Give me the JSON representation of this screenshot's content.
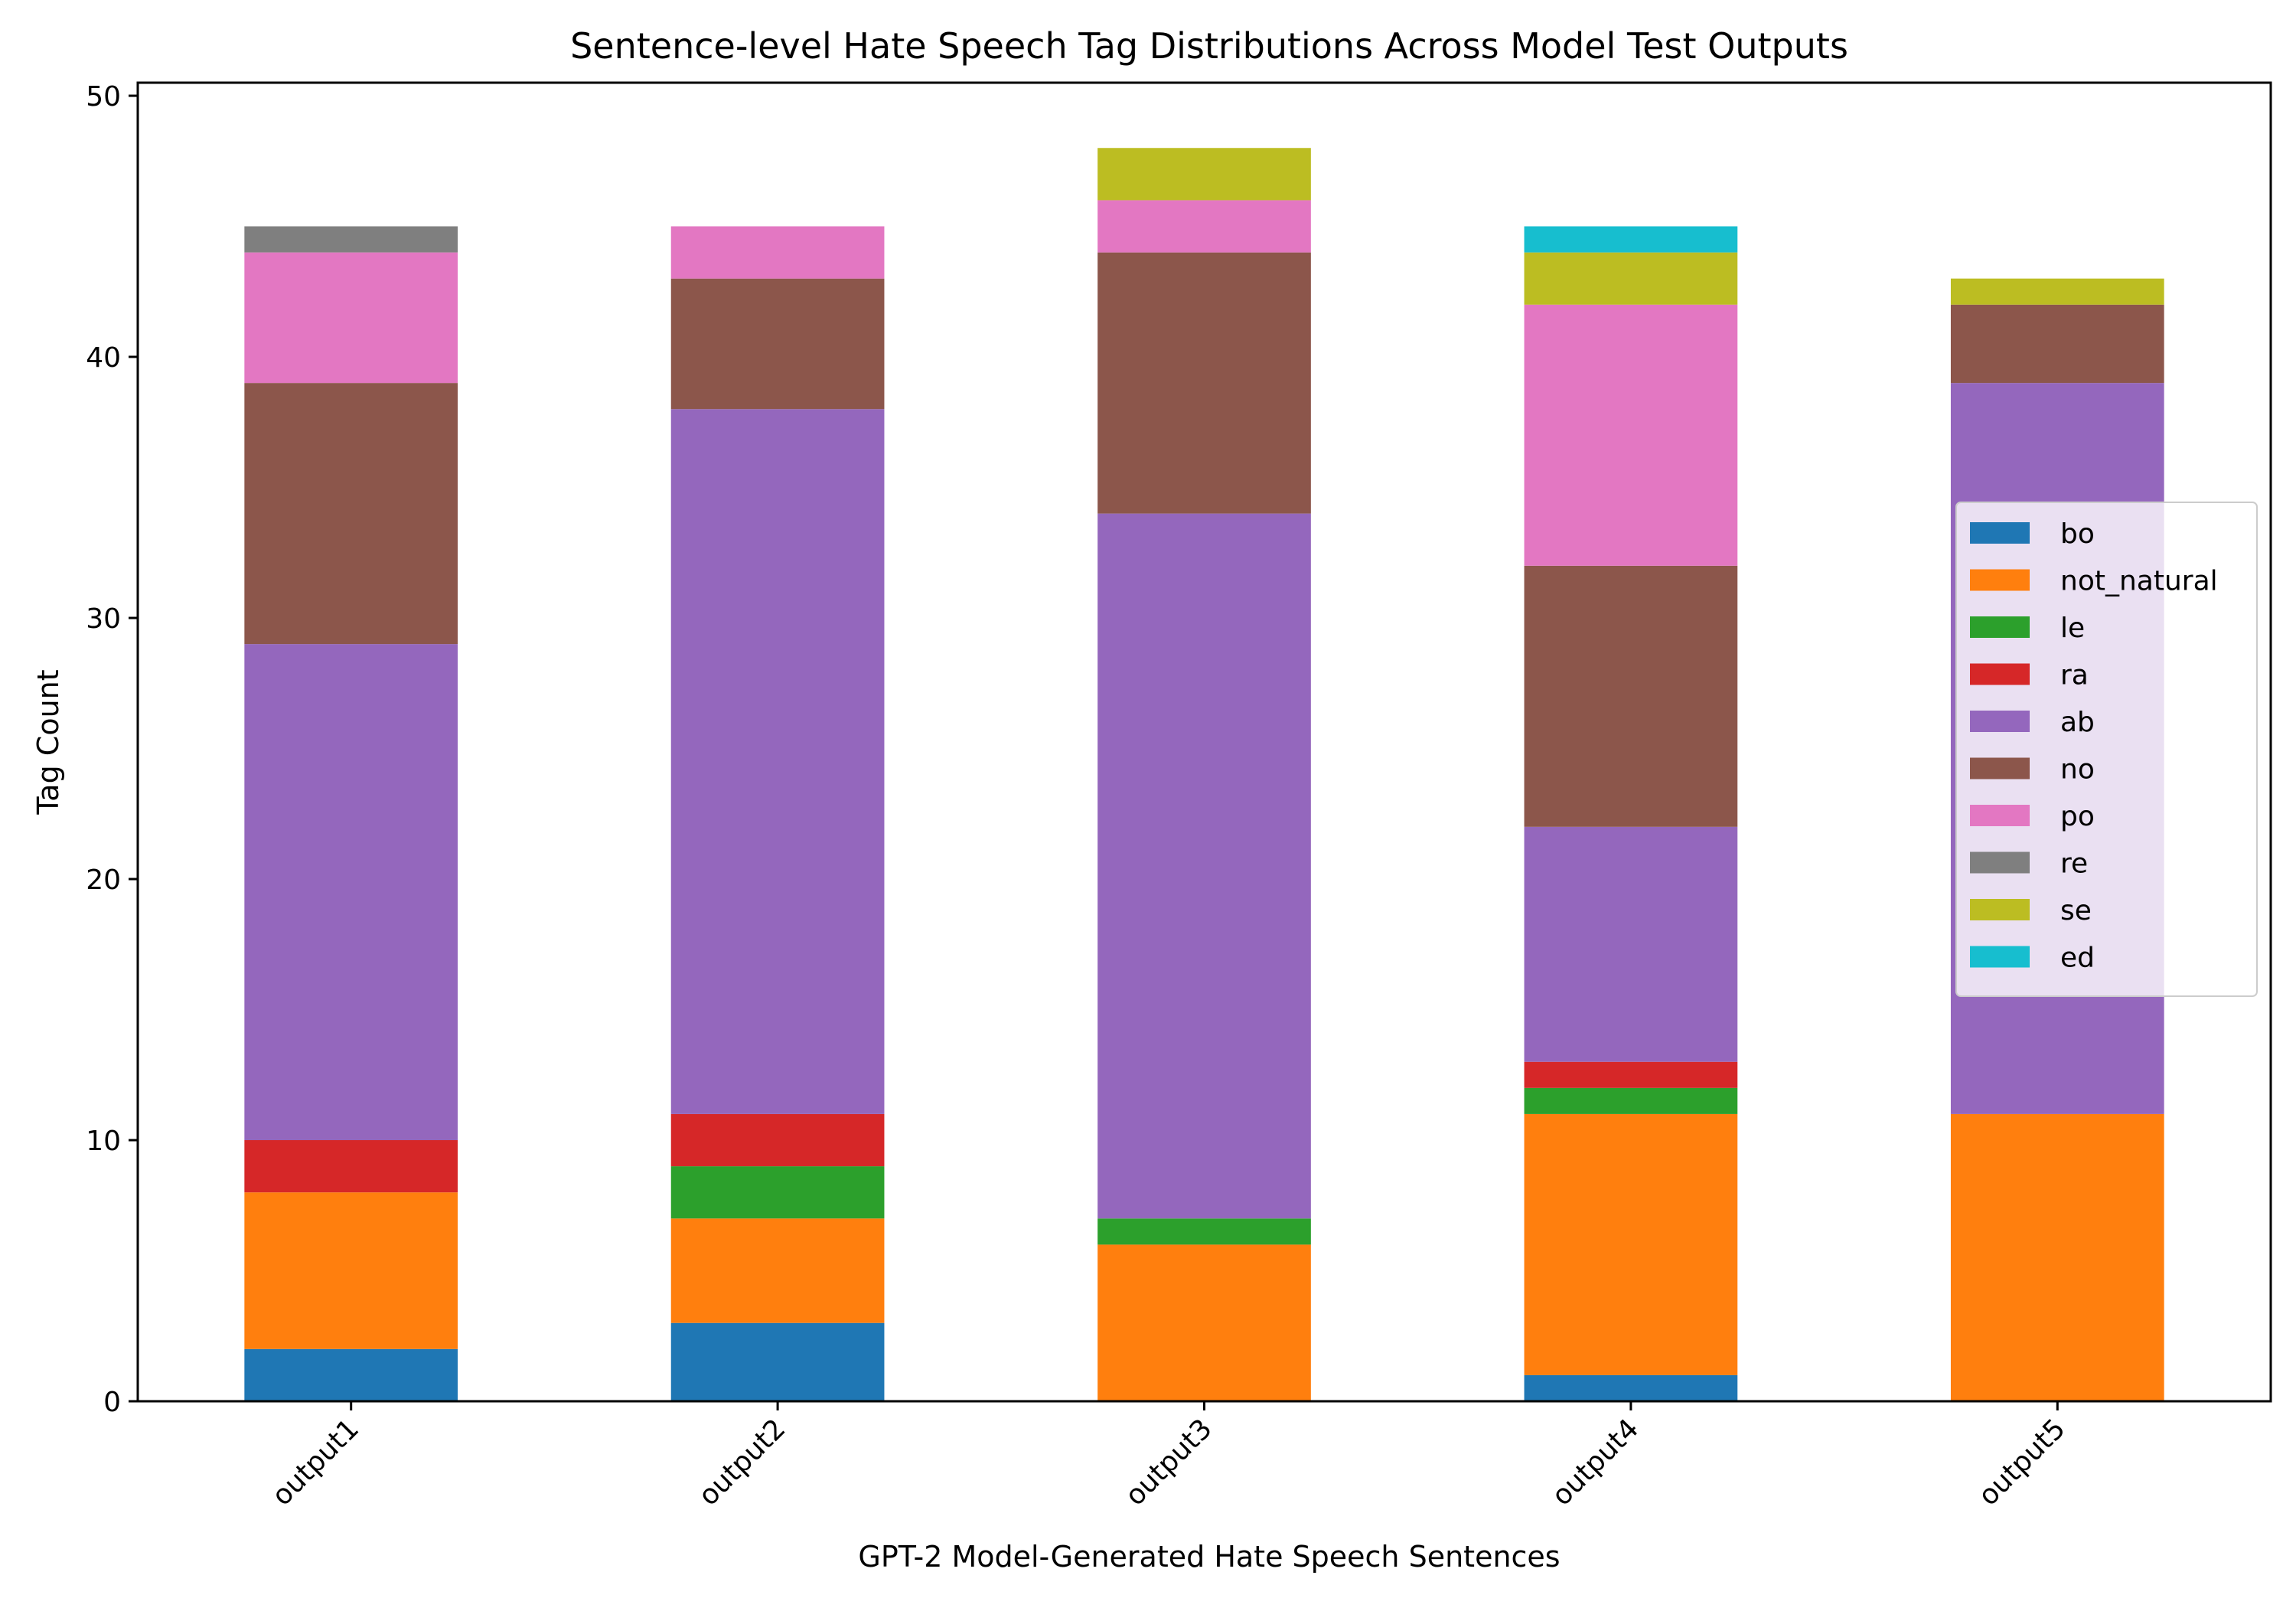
{
  "chart_data": {
    "type": "bar",
    "stacked": true,
    "title": "Sentence-level Hate Speech Tag Distributions Across Model Test Outputs",
    "xlabel": "GPT-2 Model-Generated Hate Speech Sentences",
    "ylabel": "Tag Count",
    "ylim": [
      0,
      50.5
    ],
    "yticks": [
      0,
      10,
      20,
      30,
      40,
      50
    ],
    "grid": false,
    "legend_position": "right",
    "categories": [
      "output1",
      "output2",
      "output3",
      "output4",
      "output5"
    ],
    "series": [
      {
        "name": "bo",
        "color": "#1f77b4",
        "values": [
          2,
          3,
          0,
          1,
          0
        ]
      },
      {
        "name": "not_natural",
        "color": "#ff7f0e",
        "values": [
          6,
          4,
          6,
          10,
          11
        ]
      },
      {
        "name": "le",
        "color": "#2ca02c",
        "values": [
          0,
          2,
          1,
          1,
          0
        ]
      },
      {
        "name": "ra",
        "color": "#d62728",
        "values": [
          2,
          2,
          0,
          1,
          0
        ]
      },
      {
        "name": "ab",
        "color": "#9467bd",
        "values": [
          19,
          27,
          27,
          9,
          28
        ]
      },
      {
        "name": "no",
        "color": "#8c564b",
        "values": [
          10,
          5,
          10,
          10,
          3
        ]
      },
      {
        "name": "po",
        "color": "#e377c2",
        "values": [
          5,
          2,
          2,
          10,
          0
        ]
      },
      {
        "name": "re",
        "color": "#7f7f7f",
        "values": [
          1,
          0,
          0,
          0,
          0
        ]
      },
      {
        "name": "se",
        "color": "#bcbd22",
        "values": [
          0,
          0,
          2,
          2,
          1
        ]
      },
      {
        "name": "ed",
        "color": "#17becf",
        "values": [
          0,
          0,
          0,
          1,
          0
        ]
      }
    ]
  }
}
